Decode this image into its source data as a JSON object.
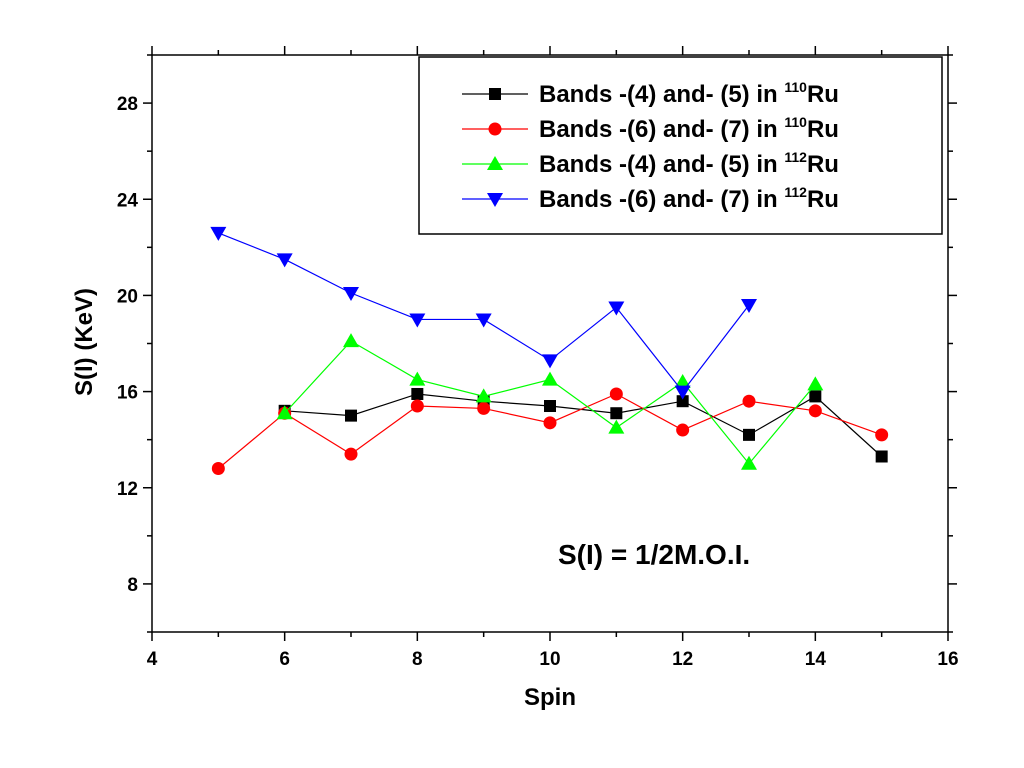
{
  "chart_data": {
    "type": "line",
    "xlabel": "Spin",
    "ylabel": "S(I)  (KeV)",
    "xlim": [
      4,
      16
    ],
    "ylim": [
      6,
      30
    ],
    "xticks": [
      4,
      6,
      8,
      10,
      12,
      14,
      16
    ],
    "yticks": [
      8,
      12,
      16,
      20,
      24,
      28
    ],
    "grid": false,
    "legend_position": "top-right",
    "annotation": "S(I) = 1/2M.O.I.",
    "series": [
      {
        "name": "Bands -(4) and- (5) in ",
        "isotope_mass": "110",
        "element": "Ru",
        "color": "#000000",
        "marker": "square",
        "x": [
          6,
          7,
          8,
          9,
          10,
          11,
          12,
          13,
          14,
          15
        ],
        "y": [
          15.2,
          15.0,
          15.9,
          15.6,
          15.4,
          15.1,
          15.6,
          14.2,
          15.8,
          13.3
        ]
      },
      {
        "name": "Bands -(6) and- (7) in ",
        "isotope_mass": "110",
        "element": "Ru",
        "color": "#ff0000",
        "marker": "circle",
        "x": [
          5,
          6,
          7,
          8,
          9,
          10,
          11,
          12,
          13,
          14,
          15
        ],
        "y": [
          12.8,
          15.1,
          13.4,
          15.4,
          15.3,
          14.7,
          15.9,
          14.4,
          15.6,
          15.2,
          14.2
        ]
      },
      {
        "name": "Bands -(4) and- (5) in ",
        "isotope_mass": "112",
        "element": "Ru",
        "color": "#00ff00",
        "marker": "triangle-up",
        "x": [
          6,
          7,
          8,
          9,
          10,
          11,
          12,
          13,
          14
        ],
        "y": [
          15.1,
          18.1,
          16.5,
          15.8,
          16.5,
          14.5,
          16.4,
          13.0,
          16.3
        ]
      },
      {
        "name": "Bands -(6) and- (7) in ",
        "isotope_mass": "112",
        "element": "Ru",
        "color": "#0000ff",
        "marker": "triangle-down",
        "x": [
          5,
          6,
          7,
          8,
          9,
          10,
          11,
          12,
          13
        ],
        "y": [
          22.6,
          21.5,
          20.1,
          19.0,
          19.0,
          17.3,
          19.5,
          16.0,
          19.6
        ]
      }
    ]
  }
}
